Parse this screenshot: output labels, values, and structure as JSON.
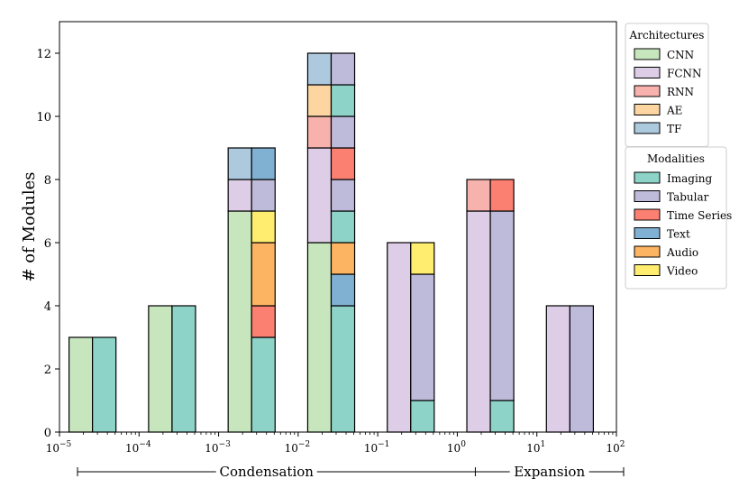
{
  "chart_data": {
    "type": "bar",
    "stacked": true,
    "ylabel": "# of Modules",
    "ylim": [
      0,
      13
    ],
    "y_ticks": [
      0,
      2,
      4,
      6,
      8,
      10,
      12
    ],
    "x_scale": "log",
    "x_ticks": [
      {
        "label": "10",
        "exp": "−5"
      },
      {
        "label": "10",
        "exp": "−4"
      },
      {
        "label": "10",
        "exp": "−3"
      },
      {
        "label": "10",
        "exp": "−2"
      },
      {
        "label": "10",
        "exp": "−1"
      },
      {
        "label": "10",
        "exp": "0"
      },
      {
        "label": "10",
        "exp": "1"
      },
      {
        "label": "10",
        "exp": "2"
      }
    ],
    "decades": [
      "1e-5..1e-4",
      "1e-4..1e-3",
      "1e-3..1e-2",
      "1e-2..1e-1",
      "1e-1..1e0",
      "1e0..1e1",
      "1e1..1e2"
    ],
    "architectures": {
      "title": "Architectures",
      "entries": [
        {
          "name": "CNN",
          "color": "#c7e6bd"
        },
        {
          "name": "FCNN",
          "color": "#ddcde6"
        },
        {
          "name": "RNN",
          "color": "#f7b2ad"
        },
        {
          "name": "AE",
          "color": "#fcd5a1"
        },
        {
          "name": "TF",
          "color": "#adc9de"
        }
      ],
      "counts": {
        "CNN": [
          3,
          4,
          7,
          6,
          0,
          0,
          0
        ],
        "FCNN": [
          0,
          0,
          1,
          3,
          6,
          7,
          4
        ],
        "RNN": [
          0,
          0,
          0,
          1,
          0,
          1,
          0
        ],
        "AE": [
          0,
          0,
          0,
          1,
          0,
          0,
          0
        ],
        "TF": [
          0,
          0,
          1,
          1,
          0,
          0,
          0
        ]
      }
    },
    "modalities": {
      "title": "Modalities",
      "entries": [
        {
          "name": "Imaging",
          "color": "#8dd3c7"
        },
        {
          "name": "Tabular",
          "color": "#bebada"
        },
        {
          "name": "Time Series",
          "color": "#fb8072"
        },
        {
          "name": "Text",
          "color": "#80b1d3"
        },
        {
          "name": "Audio",
          "color": "#fdb462"
        },
        {
          "name": "Video",
          "color": "#ffed6f"
        }
      ],
      "stacks": [
        [
          {
            "m": "Imaging",
            "v": 3
          }
        ],
        [
          {
            "m": "Imaging",
            "v": 4
          }
        ],
        [
          {
            "m": "Imaging",
            "v": 3
          },
          {
            "m": "Time Series",
            "v": 1
          },
          {
            "m": "Audio",
            "v": 2
          },
          {
            "m": "Video",
            "v": 1
          },
          {
            "m": "Tabular",
            "v": 1
          },
          {
            "m": "Text",
            "v": 1
          }
        ],
        [
          {
            "m": "Imaging",
            "v": 4
          },
          {
            "m": "Text",
            "v": 1
          },
          {
            "m": "Audio",
            "v": 1
          },
          {
            "m": "Imaging",
            "v": 1
          },
          {
            "m": "Tabular",
            "v": 1
          },
          {
            "m": "Time Series",
            "v": 1
          },
          {
            "m": "Tabular",
            "v": 1
          },
          {
            "m": "Imaging",
            "v": 1
          },
          {
            "m": "Tabular",
            "v": 1
          }
        ],
        [
          {
            "m": "Imaging",
            "v": 1
          },
          {
            "m": "Tabular",
            "v": 4
          },
          {
            "m": "Video",
            "v": 1
          }
        ],
        [
          {
            "m": "Imaging",
            "v": 1
          },
          {
            "m": "Tabular",
            "v": 6
          },
          {
            "m": "Time Series",
            "v": 1
          }
        ],
        [
          {
            "m": "Tabular",
            "v": 4
          }
        ]
      ]
    },
    "regions": [
      {
        "label": "Condensation",
        "from_exp": -5,
        "to_exp": 0
      },
      {
        "label": "Expansion",
        "from_exp": 0,
        "to_exp": 2
      }
    ],
    "grid": false,
    "legend_placement": "right, outside plot"
  }
}
